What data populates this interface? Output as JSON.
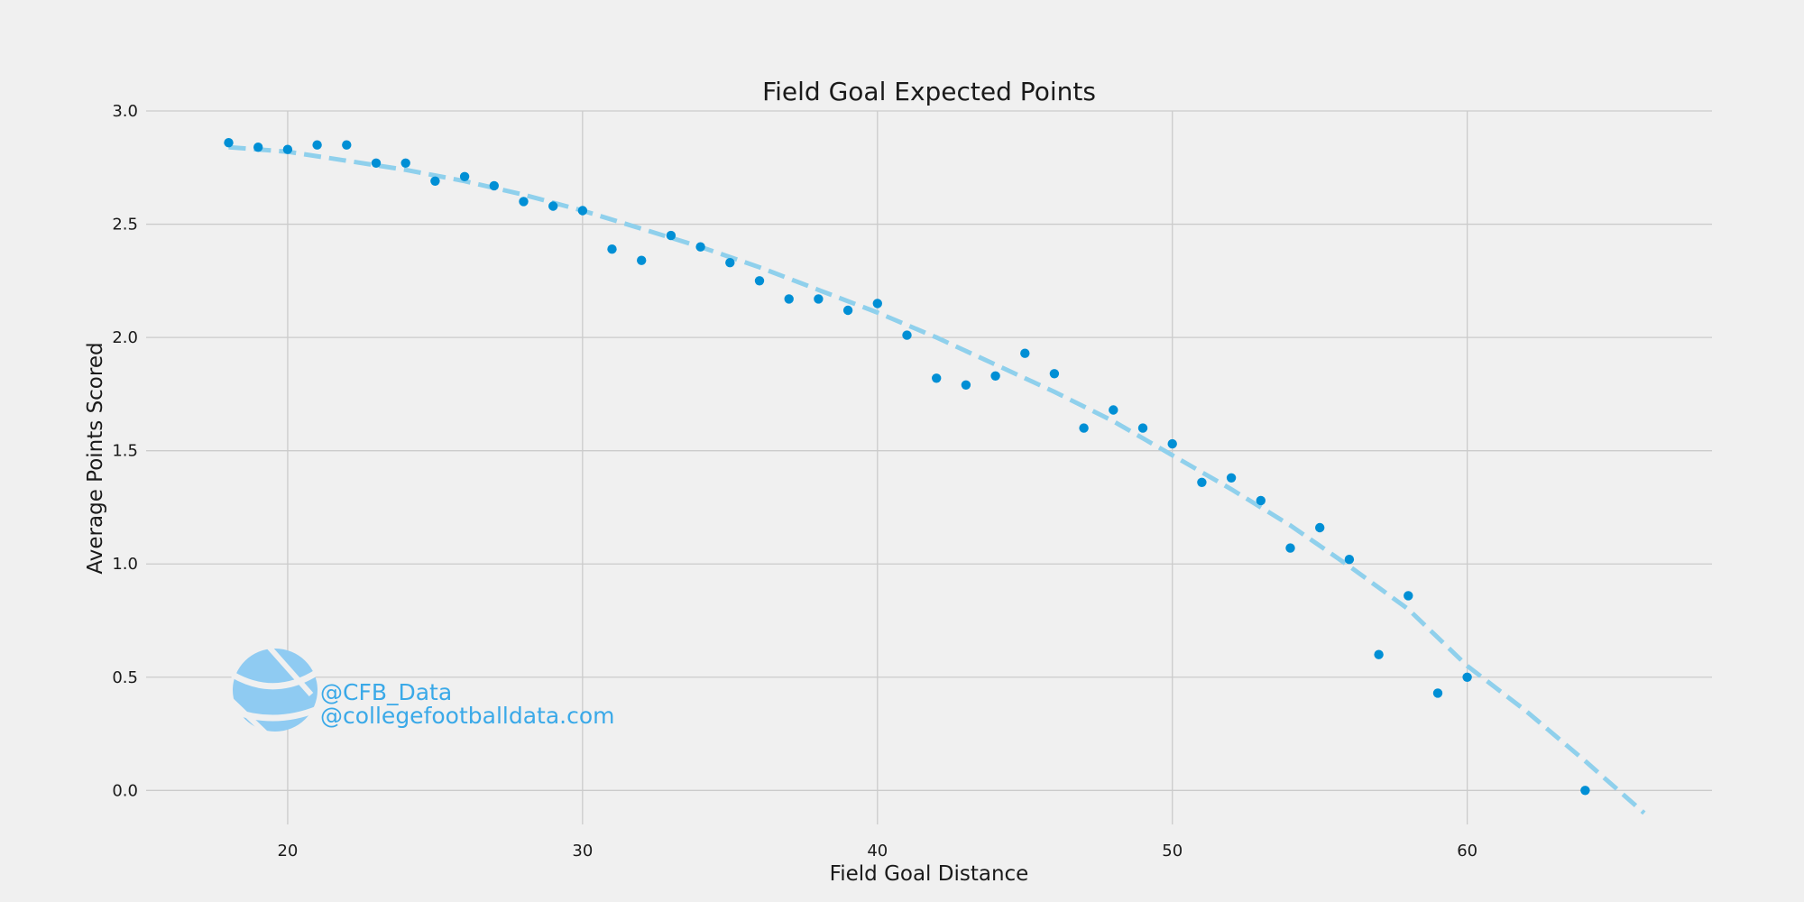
{
  "chart_data": {
    "type": "scatter",
    "title": "Field Goal Expected Points",
    "xlabel": "Field Goal Distance",
    "ylabel": "Average Points Scored",
    "xlim": [
      15.2,
      68.3
    ],
    "ylim": [
      -0.15,
      3.0
    ],
    "xticks": [
      20,
      30,
      40,
      50,
      60
    ],
    "yticks": [
      0.0,
      0.5,
      1.0,
      1.5,
      2.0,
      2.5,
      3.0
    ],
    "grid": true,
    "series": [
      {
        "kind": "scatter",
        "color": "#008fd5",
        "points": [
          [
            18,
            2.86
          ],
          [
            19,
            2.84
          ],
          [
            20,
            2.83
          ],
          [
            21,
            2.85
          ],
          [
            22,
            2.85
          ],
          [
            23,
            2.77
          ],
          [
            24,
            2.77
          ],
          [
            25,
            2.69
          ],
          [
            26,
            2.71
          ],
          [
            27,
            2.67
          ],
          [
            28,
            2.6
          ],
          [
            29,
            2.58
          ],
          [
            30,
            2.56
          ],
          [
            31,
            2.39
          ],
          [
            32,
            2.34
          ],
          [
            33,
            2.45
          ],
          [
            34,
            2.4
          ],
          [
            35,
            2.33
          ],
          [
            36,
            2.25
          ],
          [
            37,
            2.17
          ],
          [
            38,
            2.17
          ],
          [
            39,
            2.12
          ],
          [
            40,
            2.15
          ],
          [
            41,
            2.01
          ],
          [
            42,
            1.82
          ],
          [
            43,
            1.79
          ],
          [
            44,
            1.83
          ],
          [
            45,
            1.93
          ],
          [
            46,
            1.84
          ],
          [
            47,
            1.6
          ],
          [
            48,
            1.68
          ],
          [
            49,
            1.6
          ],
          [
            50,
            1.53
          ],
          [
            51,
            1.36
          ],
          [
            52,
            1.38
          ],
          [
            53,
            1.28
          ],
          [
            54,
            1.07
          ],
          [
            55,
            1.16
          ],
          [
            56,
            1.02
          ],
          [
            57,
            0.6
          ],
          [
            58,
            0.86
          ],
          [
            59,
            0.43
          ],
          [
            60,
            0.5
          ],
          [
            64,
            0.0
          ]
        ]
      },
      {
        "kind": "trend-line",
        "color": "#8fd0ec",
        "style": "dashed",
        "points": [
          [
            18,
            2.84
          ],
          [
            20,
            2.82
          ],
          [
            22,
            2.78
          ],
          [
            24,
            2.74
          ],
          [
            26,
            2.69
          ],
          [
            28,
            2.63
          ],
          [
            30,
            2.56
          ],
          [
            32,
            2.48
          ],
          [
            34,
            2.4
          ],
          [
            36,
            2.31
          ],
          [
            38,
            2.21
          ],
          [
            40,
            2.11
          ],
          [
            42,
            2.0
          ],
          [
            44,
            1.88
          ],
          [
            46,
            1.76
          ],
          [
            48,
            1.63
          ],
          [
            50,
            1.48
          ],
          [
            52,
            1.33
          ],
          [
            54,
            1.17
          ],
          [
            56,
            0.99
          ],
          [
            58,
            0.8
          ],
          [
            60,
            0.55
          ],
          [
            62,
            0.35
          ],
          [
            64,
            0.13
          ],
          [
            66,
            -0.1
          ]
        ]
      }
    ]
  },
  "watermark": {
    "handle": "@CFB_Data",
    "site": "@collegefootballdata.com",
    "color": "#3aa9e8",
    "logo_icon": "football-icon"
  }
}
